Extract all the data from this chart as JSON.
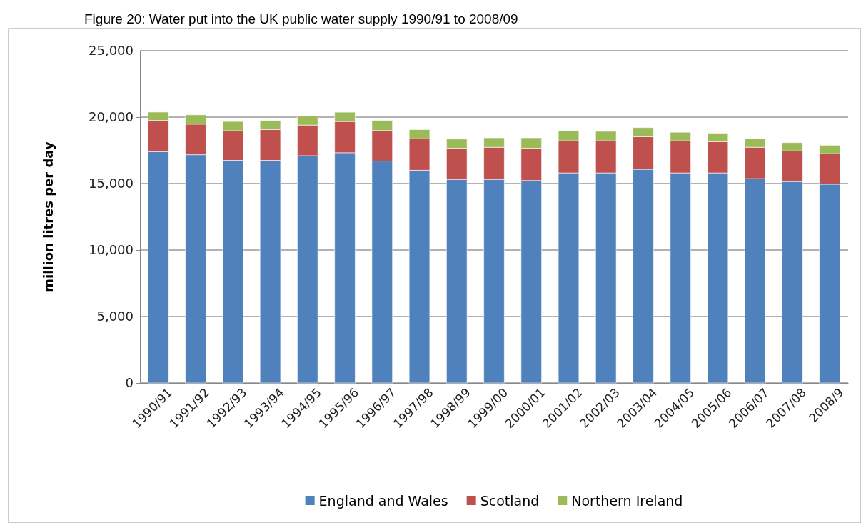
{
  "chart_data": {
    "type": "bar",
    "title": "Figure 20: Water put into the UK public water supply 1990/91 to 2008/09",
    "ylabel": "million litres per day",
    "categories": [
      "1990/91",
      "1991/92",
      "1992/93",
      "1993/94",
      "1994/95",
      "1995/96",
      "1996/97",
      "1997/98",
      "1998/99",
      "1999/00",
      "2000/01",
      "2001/02",
      "2002/03",
      "2003/04",
      "2004/05",
      "2005/06",
      "2006/07",
      "2007/08",
      "2008/9"
    ],
    "stacked": true,
    "ylim": [
      0,
      25000
    ],
    "yticks": [
      {
        "value": 0,
        "label": "0"
      },
      {
        "value": 5000,
        "label": "5,000"
      },
      {
        "value": 10000,
        "label": "10,000"
      },
      {
        "value": 15000,
        "label": "15,000"
      },
      {
        "value": 20000,
        "label": "20,000"
      },
      {
        "value": 25000,
        "label": "25,000"
      }
    ],
    "grid": "y",
    "legend": "bottom",
    "series": [
      {
        "name": "England and Wales",
        "color": "#4f81bd",
        "values": [
          17400,
          17170,
          16750,
          16750,
          17100,
          17320,
          16690,
          16000,
          15310,
          15310,
          15230,
          15800,
          15800,
          16070,
          15800,
          15800,
          15370,
          15150,
          14950
        ]
      },
      {
        "name": "Scotland",
        "color": "#c0504d",
        "values": [
          2350,
          2300,
          2230,
          2310,
          2300,
          2350,
          2300,
          2370,
          2350,
          2420,
          2430,
          2420,
          2420,
          2450,
          2420,
          2350,
          2360,
          2310,
          2300
        ]
      },
      {
        "name": "Northern Ireland",
        "color": "#9bbb59",
        "values": [
          630,
          700,
          690,
          680,
          690,
          700,
          760,
          690,
          690,
          710,
          780,
          760,
          710,
          690,
          640,
          640,
          640,
          620,
          630
        ]
      }
    ]
  }
}
